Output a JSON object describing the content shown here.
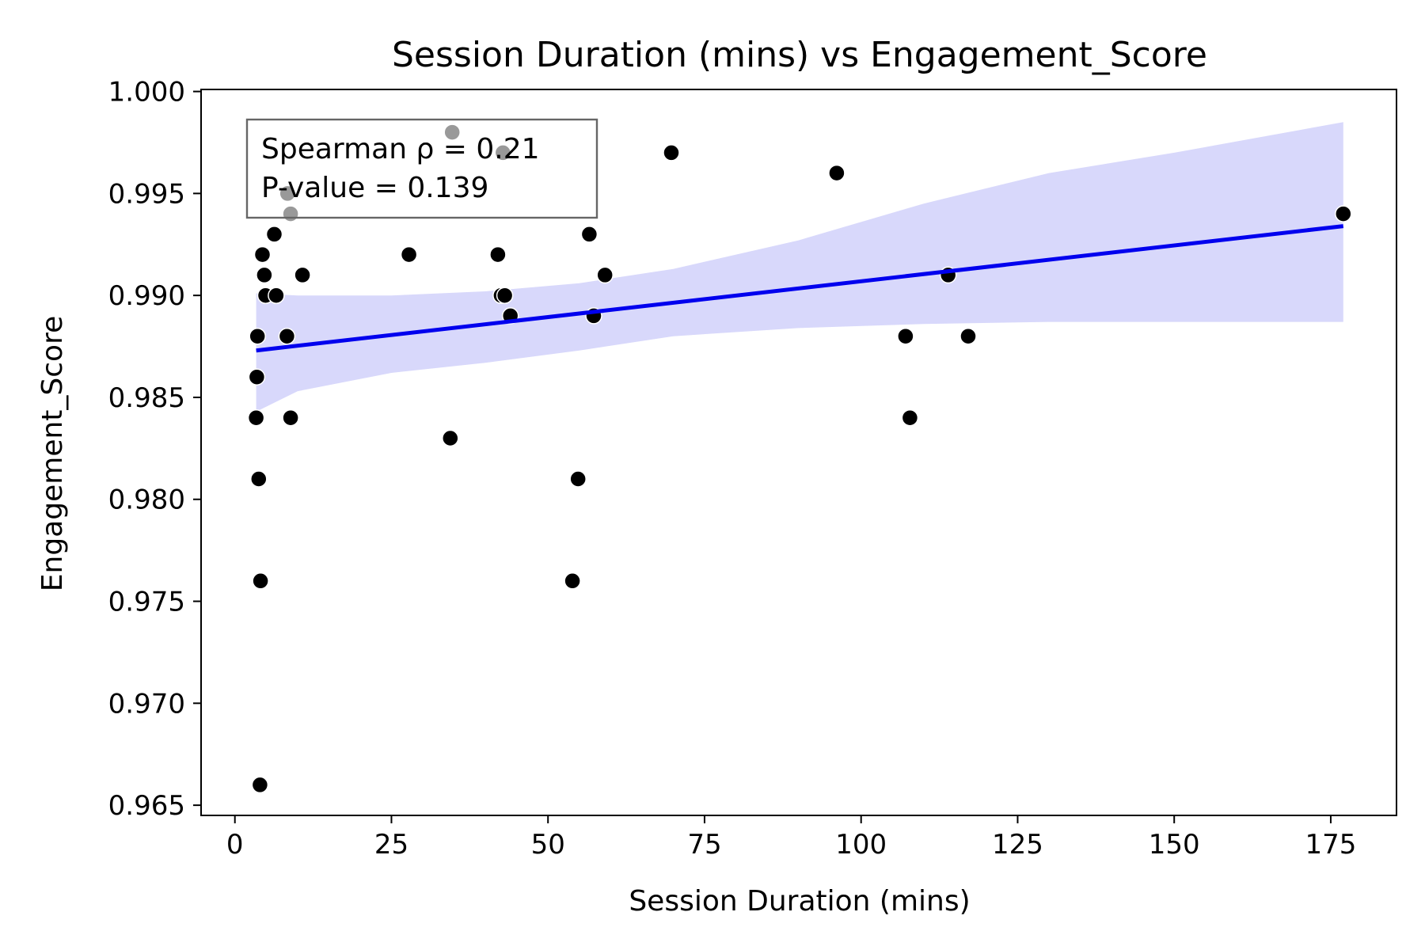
{
  "chart_data": {
    "type": "scatter",
    "title": "Session Duration (mins) vs Engagement_Score",
    "xlabel": "Session Duration (mins)",
    "ylabel": "Engagement_Score",
    "xlim": [
      -5.4,
      185.5
    ],
    "ylim": [
      0.9645,
      1.0001
    ],
    "x_ticks": [
      0,
      25,
      50,
      75,
      100,
      125,
      150,
      175
    ],
    "x_tick_labels": [
      "0",
      "25",
      "50",
      "75",
      "100",
      "125",
      "150",
      "175"
    ],
    "y_ticks": [
      0.965,
      0.97,
      0.975,
      0.98,
      0.985,
      0.99,
      0.995,
      1.0
    ],
    "y_tick_labels": [
      "0.965",
      "0.970",
      "0.975",
      "0.980",
      "0.985",
      "0.990",
      "0.995",
      "1.000"
    ],
    "grid": false,
    "annotation": {
      "lines": [
        "Spearman ρ = 0.21",
        "P-value = 0.139"
      ],
      "placement": "top-left"
    },
    "colors": {
      "points": "#000000",
      "points_behind_box": "#999999",
      "fit_line": "#0000ee",
      "confidence_band": "#d8d8fb",
      "axes": "#000000"
    },
    "points": [
      {
        "x": 3.4,
        "y": 0.984
      },
      {
        "x": 3.5,
        "y": 0.986
      },
      {
        "x": 3.6,
        "y": 0.988
      },
      {
        "x": 3.8,
        "y": 0.981
      },
      {
        "x": 4.0,
        "y": 0.966
      },
      {
        "x": 4.1,
        "y": 0.976
      },
      {
        "x": 4.4,
        "y": 0.992
      },
      {
        "x": 4.7,
        "y": 0.991
      },
      {
        "x": 4.9,
        "y": 0.99
      },
      {
        "x": 6.3,
        "y": 0.993
      },
      {
        "x": 6.6,
        "y": 0.99
      },
      {
        "x": 8.3,
        "y": 0.988
      },
      {
        "x": 8.4,
        "y": 0.995
      },
      {
        "x": 8.9,
        "y": 0.984
      },
      {
        "x": 8.9,
        "y": 0.994
      },
      {
        "x": 10.8,
        "y": 0.991
      },
      {
        "x": 27.8,
        "y": 0.992
      },
      {
        "x": 34.4,
        "y": 0.983
      },
      {
        "x": 34.7,
        "y": 0.998
      },
      {
        "x": 42.0,
        "y": 0.992
      },
      {
        "x": 42.5,
        "y": 0.99
      },
      {
        "x": 42.8,
        "y": 0.997
      },
      {
        "x": 43.1,
        "y": 0.99
      },
      {
        "x": 44.0,
        "y": 0.989
      },
      {
        "x": 53.9,
        "y": 0.976
      },
      {
        "x": 54.8,
        "y": 0.981
      },
      {
        "x": 56.6,
        "y": 0.993
      },
      {
        "x": 57.3,
        "y": 0.989
      },
      {
        "x": 59.1,
        "y": 0.991
      },
      {
        "x": 69.7,
        "y": 0.997
      },
      {
        "x": 96.1,
        "y": 0.996
      },
      {
        "x": 107.1,
        "y": 0.988
      },
      {
        "x": 107.8,
        "y": 0.984
      },
      {
        "x": 113.9,
        "y": 0.991
      },
      {
        "x": 117.1,
        "y": 0.988
      },
      {
        "x": 177.0,
        "y": 0.994
      }
    ],
    "regression_line": {
      "x": [
        3.4,
        177.0
      ],
      "y": [
        0.9873,
        0.9934
      ]
    },
    "confidence_band": {
      "x": [
        3.4,
        10,
        25,
        40,
        55,
        70,
        90,
        110,
        130,
        150,
        177.0
      ],
      "lower": [
        0.9843,
        0.9853,
        0.9862,
        0.9867,
        0.9873,
        0.988,
        0.9884,
        0.9886,
        0.9887,
        0.9887,
        0.9887
      ],
      "upper": [
        0.9901,
        0.99,
        0.99,
        0.9902,
        0.9906,
        0.9913,
        0.9927,
        0.9945,
        0.996,
        0.997,
        0.9985
      ]
    }
  }
}
